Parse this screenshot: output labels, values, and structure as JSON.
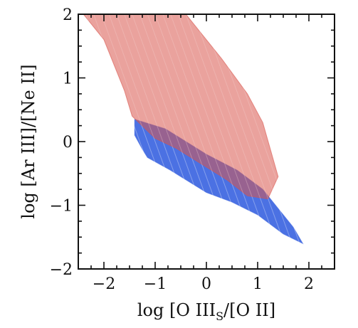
{
  "chart_data": {
    "type": "scatter",
    "xlabel": {
      "prefix": "log [O ",
      "ion1": "III",
      "sub": "S",
      "mid": "/[O ",
      "ion2": "II",
      "suffix": "]"
    },
    "ylabel": {
      "prefix": "log [Ar ",
      "ion1": "III",
      "mid": "]/[Ne ",
      "ion2": "II",
      "suffix": "]"
    },
    "xlim": [
      -2.5,
      2.5
    ],
    "ylim": [
      -2,
      2
    ],
    "x_ticks": [
      -2,
      -1,
      0,
      1,
      2
    ],
    "x_tick_labels": [
      "−2",
      "−1",
      "0",
      "1",
      "2"
    ],
    "y_ticks": [
      -2,
      -1,
      0,
      1,
      2
    ],
    "y_tick_labels": [
      "−2",
      "−1",
      "0",
      "1",
      "2"
    ],
    "grid": false,
    "series": [
      {
        "color": "#4169e1",
        "region": [
          [
            -1.4,
            0.35
          ],
          [
            -0.8,
            0.2
          ],
          [
            0.0,
            -0.2
          ],
          [
            0.6,
            -0.45
          ],
          [
            1.1,
            -0.75
          ],
          [
            1.4,
            -1.05
          ],
          [
            1.7,
            -1.35
          ],
          [
            1.88,
            -1.6
          ],
          [
            1.5,
            -1.45
          ],
          [
            1.0,
            -1.15
          ],
          [
            0.5,
            -0.95
          ],
          [
            0.0,
            -0.8
          ],
          [
            -0.7,
            -0.45
          ],
          [
            -1.15,
            -0.25
          ],
          [
            -1.25,
            -0.12
          ],
          [
            -1.4,
            0.1
          ]
        ]
      },
      {
        "color": "#d9554c",
        "region": [
          [
            -1.0,
            2.0
          ],
          [
            -0.4,
            2.0
          ],
          [
            0.3,
            1.3
          ],
          [
            0.8,
            0.75
          ],
          [
            1.1,
            0.3
          ],
          [
            1.4,
            -0.55
          ],
          [
            1.2,
            -0.9
          ],
          [
            0.8,
            -0.85
          ],
          [
            0.4,
            -0.6
          ],
          [
            0.0,
            -0.4
          ],
          [
            -0.6,
            -0.1
          ],
          [
            -1.0,
            0.05
          ],
          [
            -1.45,
            0.4
          ],
          [
            -1.6,
            0.8
          ],
          [
            -2.0,
            1.6
          ],
          [
            -2.4,
            2.0
          ]
        ]
      }
    ]
  }
}
